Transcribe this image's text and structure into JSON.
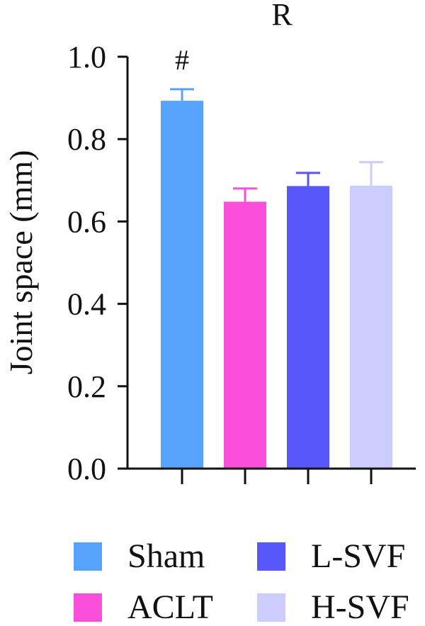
{
  "chart_data": {
    "type": "bar",
    "title": "R",
    "ylabel": "Joint space (mm)",
    "xlabel": "",
    "ylim": [
      0,
      1.0
    ],
    "yticks": [
      "0.0",
      "0.2",
      "0.4",
      "0.6",
      "0.8",
      "1.0"
    ],
    "categories": [
      "Sham",
      "ACLT",
      "L-SVF",
      "H-SVF"
    ],
    "values": [
      0.893,
      0.648,
      0.686,
      0.687
    ],
    "errors": [
      0.028,
      0.032,
      0.032,
      0.057
    ],
    "colors": [
      "#56a3fb",
      "#f94fdb",
      "#5757fa",
      "#ccccff"
    ],
    "annotations": [
      {
        "category": "Sham",
        "text": "#"
      }
    ],
    "legend": {
      "position": "bottom",
      "entries": [
        "Sham",
        "L-SVF",
        "ACLT",
        "H-SVF"
      ],
      "colors": [
        "#56a3fb",
        "#5757fa",
        "#f94fdb",
        "#ccccff"
      ]
    },
    "grid": false
  }
}
